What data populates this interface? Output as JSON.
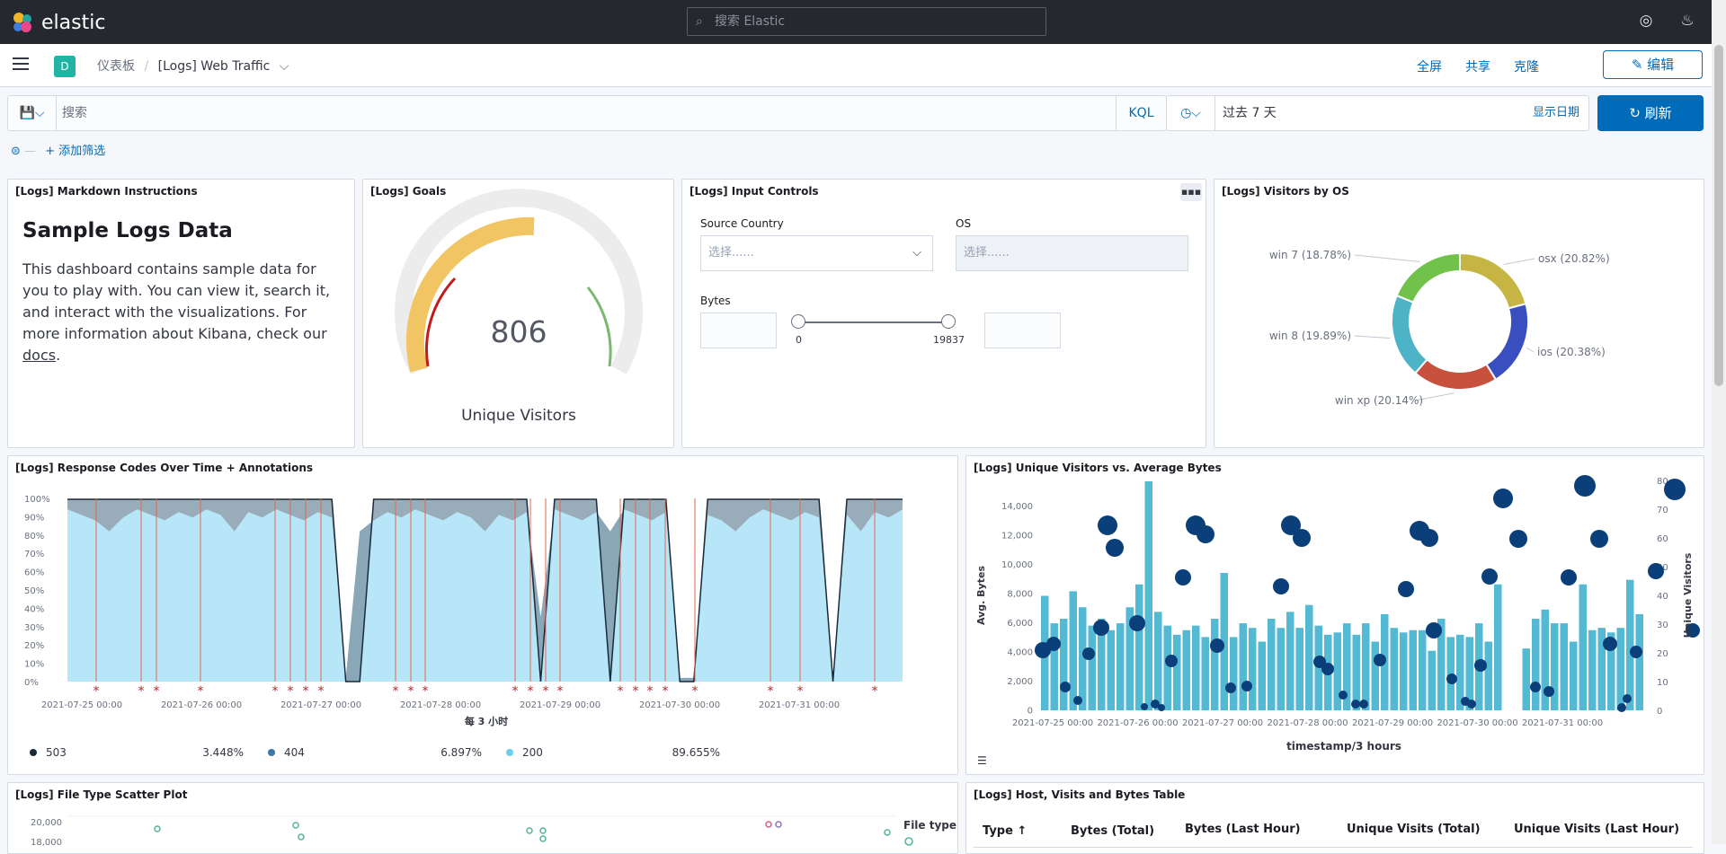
{
  "topbar": {
    "brand": "elastic",
    "search_placeholder": "搜索 Elastic"
  },
  "nav": {
    "avatar": "D",
    "breadcrumb_root": "仪表板",
    "breadcrumb_current": "[Logs] Web Traffic",
    "fullscreen": "全屏",
    "share": "共享",
    "clone": "克隆",
    "edit": "编辑"
  },
  "query": {
    "placeholder": "搜索",
    "language": "KQL",
    "time_label": "过去 7 天",
    "show_dates": "显示日期",
    "refresh": "刷新",
    "add_filter": "+ 添加筛选"
  },
  "panels": {
    "markdown": {
      "title": "[Logs] Markdown Instructions",
      "heading": "Sample Logs Data",
      "body": "This dashboard contains sample data for you to play with. You can view it, search it, and interact with the visualizations. For more information about Kibana, check our ",
      "link": "docs",
      "end": "."
    },
    "goals": {
      "title": "[Logs] Goals",
      "value": "806",
      "label": "Unique Visitors"
    },
    "input_controls": {
      "title": "[Logs] Input Controls",
      "source_country": "Source Country",
      "os": "OS",
      "select_placeholder": "选择......",
      "bytes": "Bytes",
      "min": "0",
      "max": "19837"
    },
    "visitors_os": {
      "title": "[Logs] Visitors by OS"
    },
    "response_codes": {
      "title": "[Logs] Response Codes Over Time + Annotations",
      "xlabel": "每 3 小时"
    },
    "unique_visitors": {
      "title": "[Logs] Unique Visitors vs. Average Bytes",
      "xlabel": "timestamp/3 hours",
      "ylabel_left": "Avg. Bytes",
      "ylabel_right": "Unique Visitors"
    },
    "file_type": {
      "title": "[Logs] File Type Scatter Plot",
      "legend": "File type"
    },
    "host_table": {
      "title": "[Logs] Host, Visits and Bytes Table",
      "col1": "Type ↑",
      "col2": "Bytes (Total)",
      "col3": "Bytes (Last Hour)",
      "col4": "Unique Visits (Total)",
      "col5": "Unique Visits (Last Hour)"
    }
  },
  "chart_data": [
    {
      "type": "pie",
      "title": "[Logs] Visitors by OS",
      "categories": [
        "osx",
        "ios",
        "win xp",
        "win 8",
        "win 7"
      ],
      "values": [
        20.82,
        20.38,
        20.14,
        19.89,
        18.78
      ],
      "labels": [
        "osx (20.82%)",
        "ios (20.38%)",
        "win xp (20.14%)",
        "win 8 (19.89%)",
        "win 7 (18.78%)"
      ],
      "colors": [
        "#c6b543",
        "#3a4fbf",
        "#c8513e",
        "#4db4c8",
        "#71c24a"
      ]
    },
    {
      "type": "area",
      "title": "[Logs] Response Codes Over Time + Annotations",
      "x_ticks": [
        "2021-07-25 00:00",
        "2021-07-26 00:00",
        "2021-07-27 00:00",
        "2021-07-28 00:00",
        "2021-07-29 00:00",
        "2021-07-30 00:00",
        "2021-07-31 00:00"
      ],
      "y_ticks": [
        "100%",
        "90%",
        "80%",
        "70%",
        "60%",
        "50%",
        "40%",
        "30%",
        "20%",
        "10%",
        "0%"
      ],
      "legend": [
        {
          "name": "503",
          "value": "3.448%",
          "color": "#1b2a3a"
        },
        {
          "name": "404",
          "value": "6.897%",
          "color": "#3b77a8"
        },
        {
          "name": "200",
          "value": "89.655%",
          "color": "#6dccf0"
        }
      ]
    },
    {
      "type": "bar",
      "title": "[Logs] Unique Visitors vs. Average Bytes",
      "x_ticks": [
        "2021-07-25 00:00",
        "2021-07-26 00:00",
        "2021-07-27 00:00",
        "2021-07-28 00:00",
        "2021-07-29 00:00",
        "2021-07-30 00:00",
        "2021-07-31 00:00"
      ],
      "y_left_ticks": [
        "14,000",
        "12,000",
        "10,000",
        "8,000",
        "6,000",
        "4,000",
        "2,000",
        "0"
      ],
      "y_right_ticks": [
        "80",
        "70",
        "60",
        "50",
        "40",
        "30",
        "20",
        "10",
        "0"
      ]
    },
    {
      "type": "scatter",
      "title": "[Logs] File Type Scatter Plot",
      "y_ticks": [
        "20,000",
        "18,000"
      ]
    }
  ]
}
